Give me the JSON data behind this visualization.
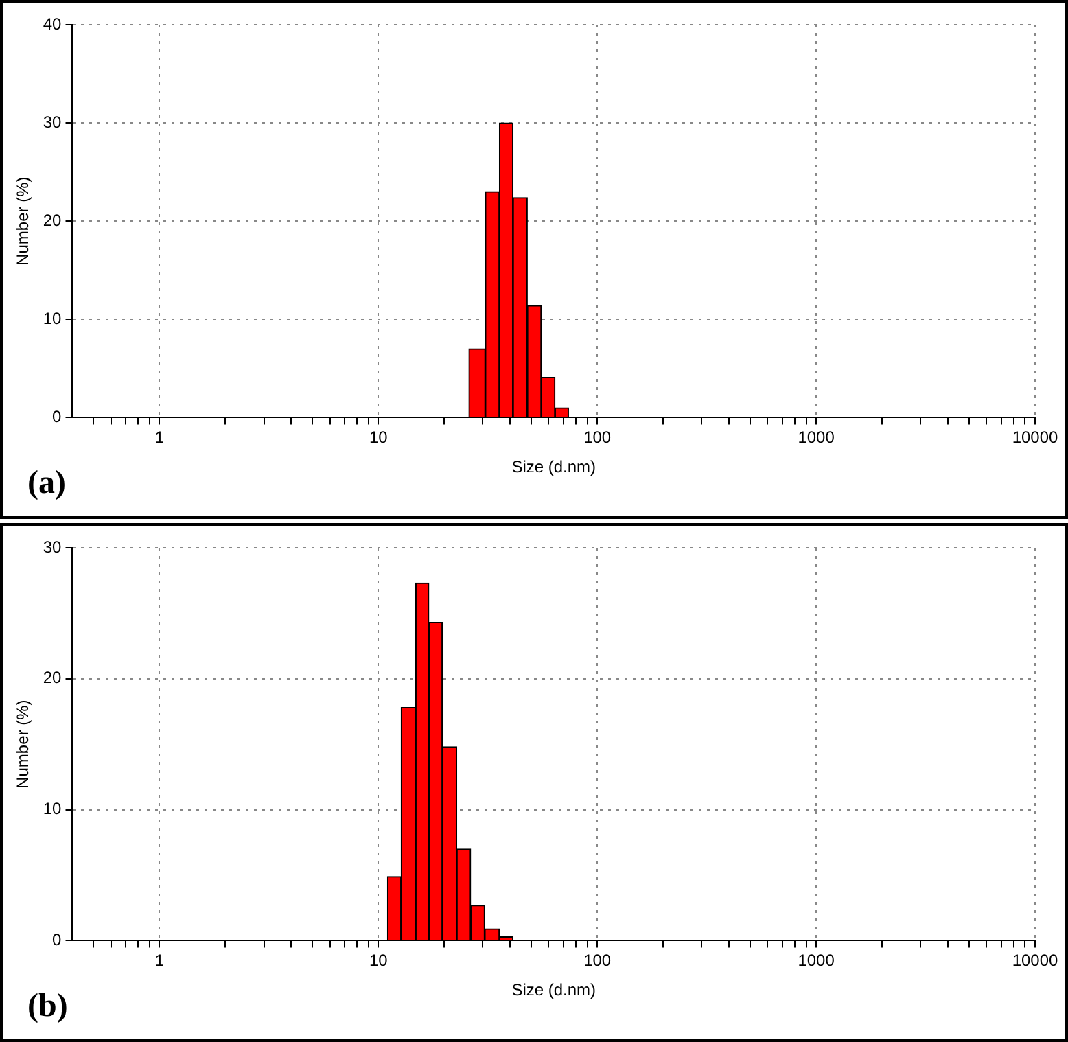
{
  "chart_data": [
    {
      "type": "histogram",
      "xlabel": "Size (d.nm)",
      "ylabel": "Number (%)",
      "log": "x",
      "color": "#ff0000",
      "bins": [
        25.9,
        30.8,
        35.7,
        41.2,
        47.9,
        55.5,
        64.1,
        73.9
      ],
      "values": [
        7.0,
        23.0,
        30.0,
        22.4,
        11.4,
        4.1,
        1.0
      ],
      "xlim": [
        0.4,
        10000
      ],
      "ylim": [
        0,
        40
      ],
      "xticks": [
        {
          "value": 0.5,
          "label": null
        },
        {
          "value": 0.6,
          "label": null
        },
        {
          "value": 0.7,
          "label": null
        },
        {
          "value": 0.8,
          "label": null
        },
        {
          "value": 0.9,
          "label": null
        },
        1,
        {
          "value": 2,
          "label": null
        },
        {
          "value": 3,
          "label": null
        },
        {
          "value": 4,
          "label": null
        },
        {
          "value": 5,
          "label": null
        },
        {
          "value": 6,
          "label": null
        },
        {
          "value": 7,
          "label": null
        },
        {
          "value": 8,
          "label": null
        },
        {
          "value": 9,
          "label": null
        },
        10,
        {
          "value": 20,
          "label": null
        },
        {
          "value": 30,
          "label": null
        },
        {
          "value": 40,
          "label": null
        },
        {
          "value": 50,
          "label": null
        },
        {
          "value": 60,
          "label": null
        },
        {
          "value": 70,
          "label": null
        },
        {
          "value": 80,
          "label": null
        },
        {
          "value": 90,
          "label": null
        },
        100,
        {
          "value": 200,
          "label": null
        },
        {
          "value": 300,
          "label": null
        },
        {
          "value": 400,
          "label": null
        },
        {
          "value": 500,
          "label": null
        },
        {
          "value": 600,
          "label": null
        },
        {
          "value": 700,
          "label": null
        },
        {
          "value": 800,
          "label": null
        },
        {
          "value": 900,
          "label": null
        },
        1000,
        {
          "value": 2000,
          "label": null
        },
        {
          "value": 3000,
          "label": null
        },
        {
          "value": 4000,
          "label": null
        },
        {
          "value": 5000,
          "label": null
        },
        {
          "value": 6000,
          "label": null
        },
        {
          "value": 7000,
          "label": null
        },
        {
          "value": 8000,
          "label": null
        },
        {
          "value": 9000,
          "label": null
        },
        10000
      ],
      "yticks": [
        0,
        10,
        20,
        30,
        40
      ],
      "grid": true,
      "legend": false,
      "annotations": [
        "(a)"
      ]
    },
    {
      "type": "histogram",
      "xlabel": "Size (d.nm)",
      "ylabel": "Number (%)",
      "log": "x",
      "color": "#ff0000",
      "bins": [
        11.0,
        12.7,
        14.8,
        17.0,
        19.6,
        22.8,
        26.4,
        30.6,
        35.7,
        41.2
      ],
      "values": [
        4.9,
        17.8,
        27.3,
        24.3,
        14.8,
        7.0,
        2.7,
        0.9,
        0.3
      ],
      "xlim": [
        0.4,
        10000
      ],
      "ylim": [
        0,
        30
      ],
      "xticks": [
        {
          "value": 0.5,
          "label": null
        },
        {
          "value": 0.6,
          "label": null
        },
        {
          "value": 0.7,
          "label": null
        },
        {
          "value": 0.8,
          "label": null
        },
        {
          "value": 0.9,
          "label": null
        },
        1,
        {
          "value": 2,
          "label": null
        },
        {
          "value": 3,
          "label": null
        },
        {
          "value": 4,
          "label": null
        },
        {
          "value": 5,
          "label": null
        },
        {
          "value": 6,
          "label": null
        },
        {
          "value": 7,
          "label": null
        },
        {
          "value": 8,
          "label": null
        },
        {
          "value": 9,
          "label": null
        },
        10,
        {
          "value": 20,
          "label": null
        },
        {
          "value": 30,
          "label": null
        },
        {
          "value": 40,
          "label": null
        },
        {
          "value": 50,
          "label": null
        },
        {
          "value": 60,
          "label": null
        },
        {
          "value": 70,
          "label": null
        },
        {
          "value": 80,
          "label": null
        },
        {
          "value": 90,
          "label": null
        },
        100,
        {
          "value": 200,
          "label": null
        },
        {
          "value": 300,
          "label": null
        },
        {
          "value": 400,
          "label": null
        },
        {
          "value": 500,
          "label": null
        },
        {
          "value": 600,
          "label": null
        },
        {
          "value": 700,
          "label": null
        },
        {
          "value": 800,
          "label": null
        },
        {
          "value": 900,
          "label": null
        },
        1000,
        {
          "value": 2000,
          "label": null
        },
        {
          "value": 3000,
          "label": null
        },
        {
          "value": 4000,
          "label": null
        },
        {
          "value": 5000,
          "label": null
        },
        {
          "value": 6000,
          "label": null
        },
        {
          "value": 7000,
          "label": null
        },
        {
          "value": 8000,
          "label": null
        },
        {
          "value": 9000,
          "label": null
        },
        10000
      ],
      "yticks": [
        0,
        10,
        20,
        30
      ],
      "grid": true,
      "legend": false,
      "annotations": [
        "(b)"
      ]
    }
  ]
}
